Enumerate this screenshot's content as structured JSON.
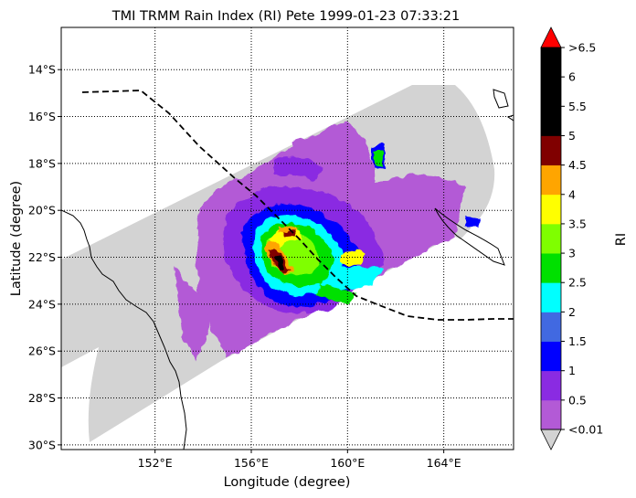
{
  "map": {
    "title": "TMI TRMM Rain Index (RI) Pete 1999-01-23 07:33:21",
    "xlabel": "Longitude (degree)",
    "ylabel": "Latitude (degree)",
    "lon_ticks": [
      {
        "value": 152,
        "label": "152°E"
      },
      {
        "value": 156,
        "label": "156°E"
      },
      {
        "value": 160,
        "label": "160°E"
      },
      {
        "value": 164,
        "label": "164°E"
      }
    ],
    "lat_ticks": [
      {
        "value": -14,
        "label": "14°S"
      },
      {
        "value": -16,
        "label": "16°S"
      },
      {
        "value": -18,
        "label": "18°S"
      },
      {
        "value": -20,
        "label": "20°S"
      },
      {
        "value": -22,
        "label": "22°S"
      },
      {
        "value": -24,
        "label": "24°S"
      },
      {
        "value": -26,
        "label": "26°S"
      },
      {
        "value": -28,
        "label": "28°S"
      },
      {
        "value": -30,
        "label": "30°S"
      }
    ],
    "extent": {
      "lon": [
        148.1,
        166.9
      ],
      "lat": [
        -30.2,
        -12.2
      ]
    },
    "grid": "dotted",
    "swath_color": "#d3d3d3",
    "storm_track": [
      [
        149,
        -15.0
      ],
      [
        151.5,
        -14.95
      ],
      [
        152.8,
        -15.8
      ],
      [
        155,
        -18.2
      ],
      [
        157,
        -20.4
      ],
      [
        159,
        -22.4
      ],
      [
        161,
        -24
      ],
      [
        163,
        -24.6
      ],
      [
        165,
        -24.7
      ],
      [
        167,
        -24.7
      ]
    ],
    "colorbar": {
      "label": "RI",
      "tick_labels": [
        "<0.01",
        "0.5",
        "1",
        "1.5",
        "2",
        "2.5",
        "3",
        "3.5",
        "4",
        "4.5",
        "5",
        "5.5",
        "6",
        ">6.5"
      ],
      "colors": [
        "#b35ad6",
        "#8a2be2",
        "#0000ff",
        "#4169e1",
        "#00ffff",
        "#00e000",
        "#7fff00",
        "#ffff00",
        "#ffa500",
        "#800000",
        "#000000",
        "#000000",
        "#000000"
      ],
      "under_color": "#d3d3d3",
      "over_color": "#ff0000"
    }
  }
}
